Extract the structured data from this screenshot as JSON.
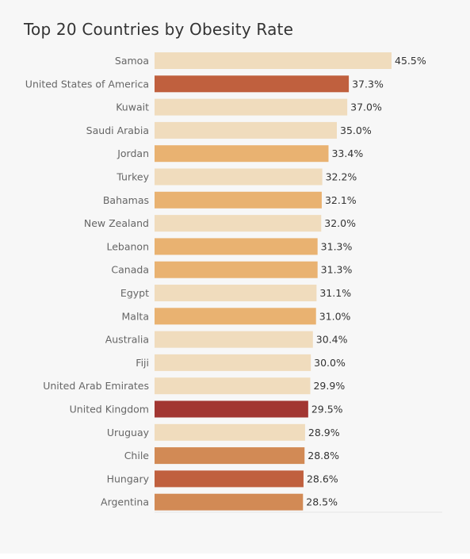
{
  "chart_data": {
    "type": "bar",
    "orientation": "horizontal",
    "title": "Top 20 Countries by Obesity Rate",
    "categories": [
      "Samoa",
      "United States of America",
      "Kuwait",
      "Saudi Arabia",
      "Jordan",
      "Turkey",
      "Bahamas",
      "New Zealand",
      "Lebanon",
      "Canada",
      "Egypt",
      "Malta",
      "Australia",
      "Fiji",
      "United Arab Emirates",
      "United Kingdom",
      "Uruguay",
      "Chile",
      "Hungary",
      "Argentina"
    ],
    "values": [
      45.5,
      37.3,
      37.0,
      35.0,
      33.4,
      32.2,
      32.1,
      32.0,
      31.3,
      31.3,
      31.1,
      31.0,
      30.4,
      30.0,
      29.9,
      29.5,
      28.9,
      28.8,
      28.6,
      28.5
    ],
    "value_labels": [
      "45.5%",
      "37.3%",
      "37.0%",
      "35.0%",
      "33.4%",
      "32.2%",
      "32.1%",
      "32.0%",
      "31.3%",
      "31.3%",
      "31.1%",
      "31.0%",
      "30.4%",
      "30.0%",
      "29.9%",
      "29.5%",
      "28.9%",
      "28.8%",
      "28.6%",
      "28.5%"
    ],
    "bar_colors": [
      "#f0dcbd",
      "#c0603e",
      "#f0dcbd",
      "#f0dcbd",
      "#e9b271",
      "#f0dcbd",
      "#e9b271",
      "#f0dcbd",
      "#e9b271",
      "#e9b271",
      "#f0dcbd",
      "#e9b271",
      "#f0dcbd",
      "#f0dcbd",
      "#f0dcbd",
      "#a23632",
      "#f0dcbd",
      "#d28a55",
      "#c0603e",
      "#d28a55"
    ],
    "xlim": [
      0,
      45.5
    ],
    "xlabel": "",
    "ylabel": "",
    "grid": false,
    "legend": "none"
  }
}
